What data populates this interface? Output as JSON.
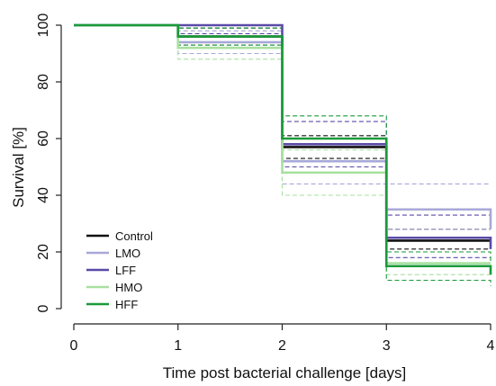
{
  "chart_data": {
    "type": "line",
    "title": "",
    "xlabel": "Time post bacterial challenge [days]",
    "ylabel": "Survival [%]",
    "xlim": [
      0,
      4
    ],
    "ylim": [
      0,
      100
    ],
    "x_ticks": [
      "0",
      "1",
      "2",
      "3",
      "4"
    ],
    "y_ticks": [
      "0",
      "20",
      "40",
      "60",
      "80",
      "100"
    ],
    "grid": false,
    "legend_position": "bottom-left",
    "step_x": [
      0,
      1,
      2,
      3,
      4
    ],
    "series": [
      {
        "name": "Control",
        "color": "#111111",
        "survival": [
          100,
          96,
          57,
          24,
          24
        ],
        "ci_lower": [
          100,
          93,
          53,
          21,
          21
        ],
        "ci_upper": [
          100,
          99,
          61,
          28,
          28
        ]
      },
      {
        "name": "LMO",
        "color": "#a8a8d8",
        "survival": [
          100,
          94,
          52,
          35,
          28
        ],
        "ci_lower": [
          100,
          90,
          44,
          28,
          28
        ],
        "ci_upper": [
          100,
          98,
          60,
          44,
          44
        ]
      },
      {
        "name": "LFF",
        "color": "#5a4aa8",
        "survival": [
          100,
          100,
          58,
          25,
          21
        ],
        "ci_lower": [
          100,
          97,
          50,
          18,
          18
        ],
        "ci_upper": [
          100,
          100,
          66,
          33,
          33
        ]
      },
      {
        "name": "HMO",
        "color": "#a8e0a0",
        "survival": [
          100,
          92,
          48,
          16,
          16
        ],
        "ci_lower": [
          100,
          88,
          40,
          12,
          12
        ],
        "ci_upper": [
          100,
          96,
          56,
          20,
          20
        ]
      },
      {
        "name": "HFF",
        "color": "#1a9a3a",
        "survival": [
          100,
          96,
          60,
          15,
          12
        ],
        "ci_lower": [
          100,
          93,
          52,
          10,
          8
        ],
        "ci_upper": [
          100,
          99,
          68,
          20,
          16
        ]
      }
    ]
  }
}
